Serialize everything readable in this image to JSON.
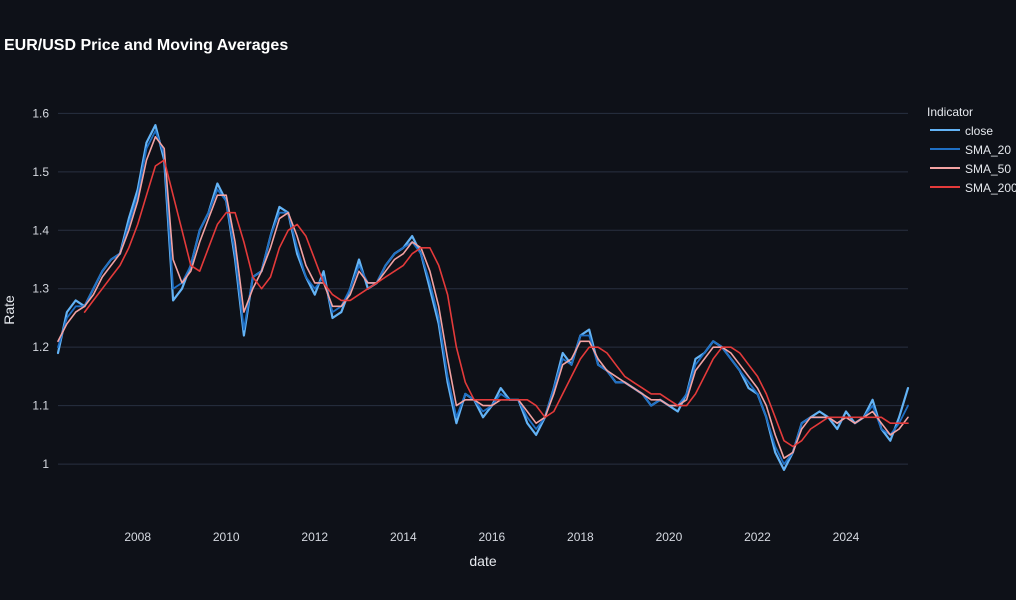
{
  "chart_data": {
    "type": "line",
    "title": "EUR/USD Price and Moving Averages",
    "xlabel": "date",
    "ylabel": "Rate",
    "xlim": [
      2006.2,
      2025.4
    ],
    "ylim": [
      0.93,
      1.64
    ],
    "grid": true,
    "x_ticks": [
      2008,
      2010,
      2012,
      2014,
      2016,
      2018,
      2020,
      2022,
      2024
    ],
    "x_tick_labels": [
      "2008",
      "2010",
      "2012",
      "2014",
      "2016",
      "2018",
      "2020",
      "2022",
      "2024"
    ],
    "y_ticks": [
      1.0,
      1.1,
      1.2,
      1.3,
      1.4,
      1.5,
      1.6
    ],
    "y_tick_labels": [
      "1",
      "1.1",
      "1.2",
      "1.3",
      "1.4",
      "1.5",
      "1.6"
    ],
    "legend": {
      "title": "Indicator",
      "position": "right",
      "entries": [
        "close",
        "SMA_20",
        "SMA_50",
        "SMA_200"
      ]
    },
    "x": [
      2006.2,
      2006.4,
      2006.6,
      2006.8,
      2007.0,
      2007.2,
      2007.4,
      2007.6,
      2007.8,
      2008.0,
      2008.2,
      2008.4,
      2008.6,
      2008.8,
      2009.0,
      2009.2,
      2009.4,
      2009.6,
      2009.8,
      2010.0,
      2010.2,
      2010.4,
      2010.6,
      2010.8,
      2011.0,
      2011.2,
      2011.4,
      2011.6,
      2011.8,
      2012.0,
      2012.2,
      2012.4,
      2012.6,
      2012.8,
      2013.0,
      2013.2,
      2013.4,
      2013.6,
      2013.8,
      2014.0,
      2014.2,
      2014.4,
      2014.6,
      2014.8,
      2015.0,
      2015.2,
      2015.4,
      2015.6,
      2015.8,
      2016.0,
      2016.2,
      2016.4,
      2016.6,
      2016.8,
      2017.0,
      2017.2,
      2017.4,
      2017.6,
      2017.8,
      2018.0,
      2018.2,
      2018.4,
      2018.6,
      2018.8,
      2019.0,
      2019.2,
      2019.4,
      2019.6,
      2019.8,
      2020.0,
      2020.2,
      2020.4,
      2020.6,
      2020.8,
      2021.0,
      2021.2,
      2021.4,
      2021.6,
      2021.8,
      2022.0,
      2022.2,
      2022.4,
      2022.6,
      2022.8,
      2023.0,
      2023.2,
      2023.4,
      2023.6,
      2023.8,
      2024.0,
      2024.2,
      2024.4,
      2024.6,
      2024.8,
      2025.0,
      2025.2,
      2025.4
    ],
    "series": [
      {
        "name": "close",
        "color": "#63b3f5",
        "values": [
          1.19,
          1.26,
          1.28,
          1.27,
          1.3,
          1.33,
          1.35,
          1.36,
          1.42,
          1.47,
          1.55,
          1.58,
          1.52,
          1.28,
          1.3,
          1.34,
          1.4,
          1.43,
          1.48,
          1.45,
          1.35,
          1.22,
          1.32,
          1.33,
          1.39,
          1.44,
          1.43,
          1.36,
          1.32,
          1.29,
          1.33,
          1.25,
          1.26,
          1.3,
          1.35,
          1.3,
          1.31,
          1.34,
          1.36,
          1.37,
          1.39,
          1.36,
          1.3,
          1.24,
          1.14,
          1.07,
          1.12,
          1.11,
          1.08,
          1.1,
          1.13,
          1.11,
          1.11,
          1.07,
          1.05,
          1.08,
          1.13,
          1.19,
          1.17,
          1.22,
          1.23,
          1.17,
          1.16,
          1.14,
          1.14,
          1.13,
          1.12,
          1.1,
          1.11,
          1.1,
          1.09,
          1.12,
          1.18,
          1.19,
          1.21,
          1.2,
          1.18,
          1.16,
          1.13,
          1.12,
          1.08,
          1.02,
          0.99,
          1.02,
          1.07,
          1.08,
          1.09,
          1.08,
          1.06,
          1.09,
          1.07,
          1.08,
          1.11,
          1.06,
          1.04,
          1.08,
          1.13
        ]
      },
      {
        "name": "SMA_20",
        "color": "#1f6fc4",
        "values": [
          1.2,
          1.25,
          1.27,
          1.27,
          1.3,
          1.33,
          1.35,
          1.36,
          1.41,
          1.46,
          1.54,
          1.57,
          1.53,
          1.3,
          1.31,
          1.34,
          1.4,
          1.43,
          1.47,
          1.45,
          1.36,
          1.23,
          1.32,
          1.33,
          1.39,
          1.43,
          1.43,
          1.37,
          1.32,
          1.3,
          1.32,
          1.26,
          1.27,
          1.3,
          1.34,
          1.31,
          1.31,
          1.34,
          1.36,
          1.37,
          1.38,
          1.36,
          1.31,
          1.25,
          1.15,
          1.08,
          1.12,
          1.11,
          1.09,
          1.1,
          1.12,
          1.11,
          1.11,
          1.08,
          1.06,
          1.08,
          1.13,
          1.18,
          1.17,
          1.22,
          1.22,
          1.17,
          1.16,
          1.14,
          1.14,
          1.13,
          1.12,
          1.1,
          1.11,
          1.1,
          1.1,
          1.12,
          1.17,
          1.19,
          1.21,
          1.2,
          1.18,
          1.16,
          1.14,
          1.12,
          1.08,
          1.03,
          1.0,
          1.02,
          1.07,
          1.08,
          1.08,
          1.08,
          1.07,
          1.08,
          1.07,
          1.08,
          1.1,
          1.06,
          1.05,
          1.07,
          1.1
        ]
      },
      {
        "name": "SMA_50",
        "color": "#f4a3a3",
        "values": [
          1.21,
          1.24,
          1.26,
          1.27,
          1.29,
          1.32,
          1.34,
          1.36,
          1.4,
          1.45,
          1.52,
          1.56,
          1.54,
          1.35,
          1.31,
          1.33,
          1.38,
          1.42,
          1.46,
          1.46,
          1.38,
          1.26,
          1.3,
          1.33,
          1.37,
          1.42,
          1.43,
          1.39,
          1.34,
          1.31,
          1.31,
          1.27,
          1.27,
          1.29,
          1.33,
          1.31,
          1.31,
          1.33,
          1.35,
          1.36,
          1.38,
          1.37,
          1.33,
          1.27,
          1.18,
          1.1,
          1.11,
          1.11,
          1.1,
          1.1,
          1.11,
          1.11,
          1.11,
          1.09,
          1.07,
          1.08,
          1.12,
          1.17,
          1.18,
          1.21,
          1.21,
          1.18,
          1.16,
          1.15,
          1.14,
          1.13,
          1.12,
          1.11,
          1.11,
          1.1,
          1.1,
          1.11,
          1.16,
          1.18,
          1.2,
          1.2,
          1.19,
          1.17,
          1.15,
          1.13,
          1.1,
          1.05,
          1.01,
          1.02,
          1.06,
          1.08,
          1.08,
          1.08,
          1.07,
          1.08,
          1.07,
          1.08,
          1.09,
          1.07,
          1.05,
          1.06,
          1.08
        ]
      },
      {
        "name": "SMA_200",
        "color": "#e43a3a",
        "values": [
          null,
          null,
          null,
          1.26,
          1.28,
          1.3,
          1.32,
          1.34,
          1.37,
          1.41,
          1.46,
          1.51,
          1.52,
          1.46,
          1.4,
          1.34,
          1.33,
          1.37,
          1.41,
          1.43,
          1.43,
          1.38,
          1.32,
          1.3,
          1.32,
          1.37,
          1.4,
          1.41,
          1.39,
          1.35,
          1.31,
          1.29,
          1.28,
          1.28,
          1.29,
          1.3,
          1.31,
          1.32,
          1.33,
          1.34,
          1.36,
          1.37,
          1.37,
          1.34,
          1.29,
          1.2,
          1.14,
          1.11,
          1.11,
          1.11,
          1.11,
          1.11,
          1.11,
          1.11,
          1.1,
          1.08,
          1.09,
          1.12,
          1.15,
          1.18,
          1.2,
          1.2,
          1.19,
          1.17,
          1.15,
          1.14,
          1.13,
          1.12,
          1.12,
          1.11,
          1.1,
          1.1,
          1.12,
          1.15,
          1.18,
          1.2,
          1.2,
          1.19,
          1.17,
          1.15,
          1.12,
          1.08,
          1.04,
          1.03,
          1.04,
          1.06,
          1.07,
          1.08,
          1.08,
          1.08,
          1.08,
          1.08,
          1.08,
          1.08,
          1.07,
          1.07,
          1.07
        ]
      }
    ]
  }
}
